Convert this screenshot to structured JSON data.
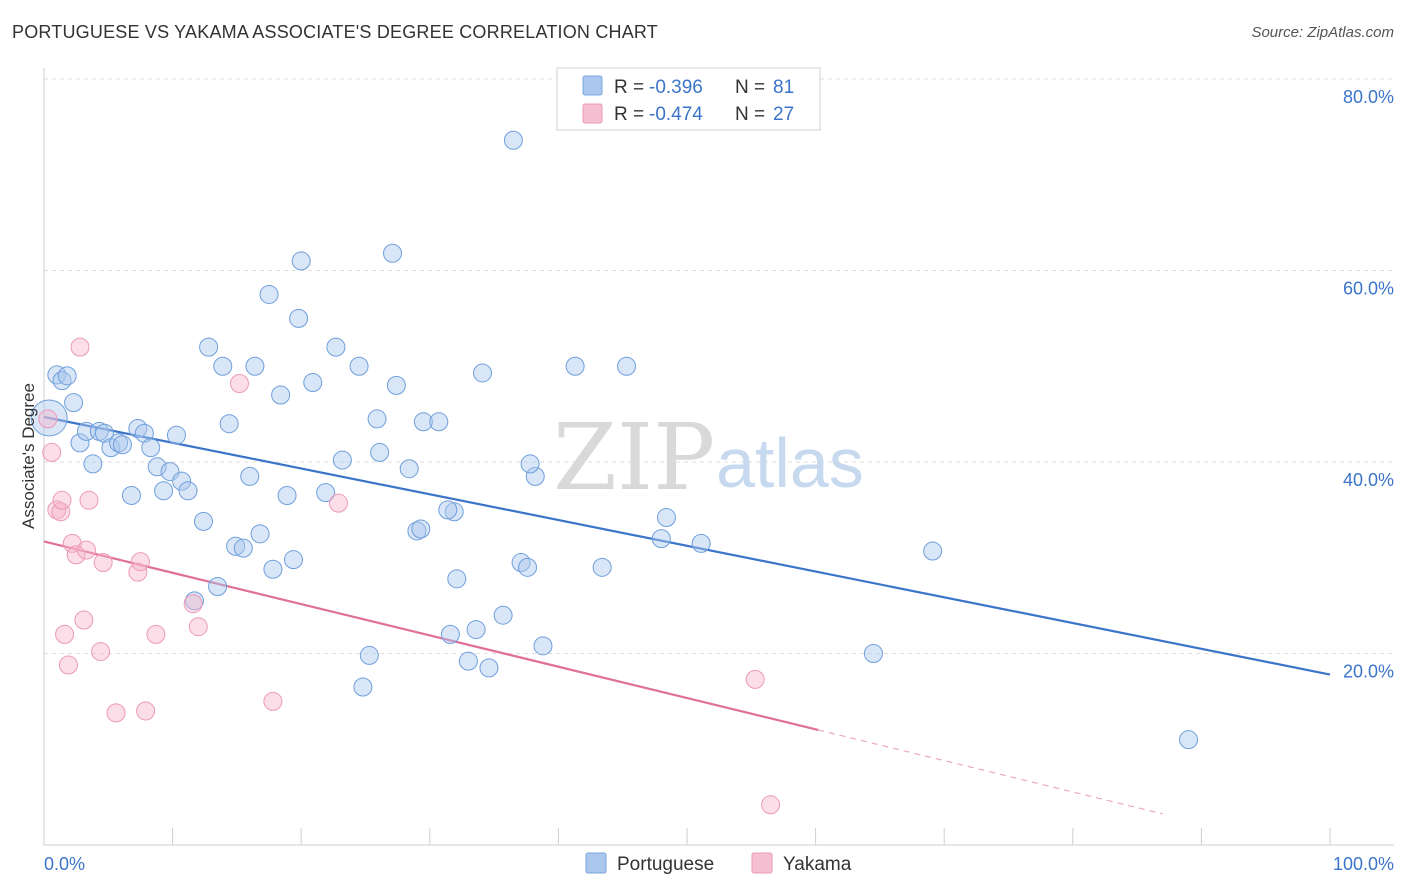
{
  "title": "PORTUGUESE VS YAKAMA ASSOCIATE'S DEGREE CORRELATION CHART",
  "source": "Source: ZipAtlas.com",
  "watermark": {
    "zip": "ZIP",
    "atlas": "atlas"
  },
  "colors": {
    "blue": "#3b74c9",
    "blue_fill": "#aac8ee",
    "pink": "#e0709a",
    "pink_fill": "#f6b6c9",
    "grid": "#dcdcdc"
  },
  "legend_top": [
    {
      "r_label": "R = ",
      "r_value": "-0.396",
      "n_label": "N = ",
      "n_value": "81"
    },
    {
      "r_label": "R = ",
      "r_value": "-0.474",
      "n_label": "N = ",
      "n_value": "27"
    }
  ],
  "legend_bottom": [
    "Portuguese",
    "Yakama"
  ],
  "chart_data": {
    "type": "scatter",
    "title": "PORTUGUESE VS YAKAMA ASSOCIATE'S DEGREE CORRELATION CHART",
    "xlabel": "",
    "ylabel": "Associate's Degree",
    "xlim": [
      0,
      100
    ],
    "ylim": [
      0,
      80
    ],
    "x_tick_labels": [
      "0.0%",
      "100.0%"
    ],
    "y_ticks": [
      20,
      40,
      60,
      80
    ],
    "y_tick_labels": [
      "20.0%",
      "40.0%",
      "60.0%",
      "80.0%"
    ],
    "grid": true,
    "legend_position": "top-center",
    "series": [
      {
        "name": "Portuguese",
        "color": "#3b74c9",
        "r": -0.396,
        "n": 81,
        "trend": {
          "x": [
            0,
            100
          ],
          "y": [
            44.7,
            17.8
          ],
          "solid_to": 100
        },
        "points": [
          [
            0.4,
            44.6
          ],
          [
            1.0,
            49.1
          ],
          [
            1.4,
            48.5
          ],
          [
            1.8,
            49.0
          ],
          [
            2.3,
            46.2
          ],
          [
            2.8,
            42.0
          ],
          [
            3.3,
            43.2
          ],
          [
            3.8,
            39.8
          ],
          [
            4.3,
            43.2
          ],
          [
            4.7,
            43.0
          ],
          [
            5.2,
            41.5
          ],
          [
            5.8,
            42.0
          ],
          [
            6.1,
            41.8
          ],
          [
            6.8,
            36.5
          ],
          [
            7.3,
            43.5
          ],
          [
            7.8,
            43.0
          ],
          [
            8.3,
            41.5
          ],
          [
            8.8,
            39.5
          ],
          [
            9.3,
            37.0
          ],
          [
            9.8,
            39.0
          ],
          [
            10.3,
            42.8
          ],
          [
            10.7,
            38.0
          ],
          [
            11.2,
            37.0
          ],
          [
            11.7,
            25.5
          ],
          [
            12.4,
            33.8
          ],
          [
            12.8,
            52.0
          ],
          [
            13.5,
            27.0
          ],
          [
            13.9,
            50.0
          ],
          [
            14.4,
            44.0
          ],
          [
            14.9,
            31.2
          ],
          [
            15.5,
            31.0
          ],
          [
            16.0,
            38.5
          ],
          [
            16.4,
            50.0
          ],
          [
            16.8,
            32.5
          ],
          [
            17.5,
            57.5
          ],
          [
            17.8,
            28.8
          ],
          [
            18.4,
            47.0
          ],
          [
            18.9,
            36.5
          ],
          [
            19.4,
            29.8
          ],
          [
            20.0,
            61.0
          ],
          [
            19.8,
            55.0
          ],
          [
            20.9,
            48.3
          ],
          [
            21.9,
            36.8
          ],
          [
            22.7,
            52.0
          ],
          [
            23.2,
            40.2
          ],
          [
            24.5,
            50.0
          ],
          [
            25.3,
            19.8
          ],
          [
            25.9,
            44.5
          ],
          [
            27.1,
            61.8
          ],
          [
            27.4,
            48.0
          ],
          [
            24.8,
            16.5
          ],
          [
            26.1,
            41.0
          ],
          [
            28.4,
            39.3
          ],
          [
            29.0,
            32.8
          ],
          [
            29.3,
            33.0
          ],
          [
            29.5,
            44.2
          ],
          [
            30.7,
            44.2
          ],
          [
            31.6,
            22.0
          ],
          [
            31.9,
            34.8
          ],
          [
            32.1,
            27.8
          ],
          [
            31.4,
            35.0
          ],
          [
            33.0,
            19.2
          ],
          [
            33.6,
            22.5
          ],
          [
            34.1,
            49.3
          ],
          [
            34.6,
            18.5
          ],
          [
            35.7,
            24.0
          ],
          [
            36.5,
            73.6
          ],
          [
            37.1,
            29.5
          ],
          [
            37.6,
            29.0
          ],
          [
            38.2,
            38.5
          ],
          [
            38.8,
            20.8
          ],
          [
            37.8,
            39.8
          ],
          [
            41.3,
            50.0
          ],
          [
            43.4,
            29.0
          ],
          [
            45.3,
            50.0
          ],
          [
            48.0,
            32.0
          ],
          [
            48.4,
            34.2
          ],
          [
            51.1,
            31.5
          ],
          [
            64.5,
            20.0
          ],
          [
            69.1,
            30.7
          ],
          [
            89.0,
            11.0
          ]
        ]
      },
      {
        "name": "Yakama",
        "color": "#e0709a",
        "r": -0.474,
        "n": 27,
        "trend": {
          "x": [
            0,
            100
          ],
          "y": [
            31.7,
            -1.0
          ],
          "solid_to": 60.2
        },
        "points": [
          [
            0.3,
            44.5
          ],
          [
            0.6,
            41.0
          ],
          [
            1.0,
            35.0
          ],
          [
            1.3,
            34.8
          ],
          [
            1.4,
            36.0
          ],
          [
            1.6,
            22.0
          ],
          [
            1.9,
            18.8
          ],
          [
            2.2,
            31.5
          ],
          [
            2.5,
            30.3
          ],
          [
            2.8,
            52.0
          ],
          [
            3.1,
            23.5
          ],
          [
            3.3,
            30.8
          ],
          [
            3.5,
            36.0
          ],
          [
            4.4,
            20.2
          ],
          [
            4.6,
            29.5
          ],
          [
            5.6,
            13.8
          ],
          [
            7.3,
            28.5
          ],
          [
            7.5,
            29.6
          ],
          [
            7.9,
            14.0
          ],
          [
            8.7,
            22.0
          ],
          [
            11.6,
            25.2
          ],
          [
            12.0,
            22.8
          ],
          [
            15.2,
            48.2
          ],
          [
            17.8,
            15.0
          ],
          [
            22.9,
            35.7
          ],
          [
            55.3,
            17.3
          ],
          [
            56.5,
            4.2
          ]
        ]
      }
    ]
  }
}
